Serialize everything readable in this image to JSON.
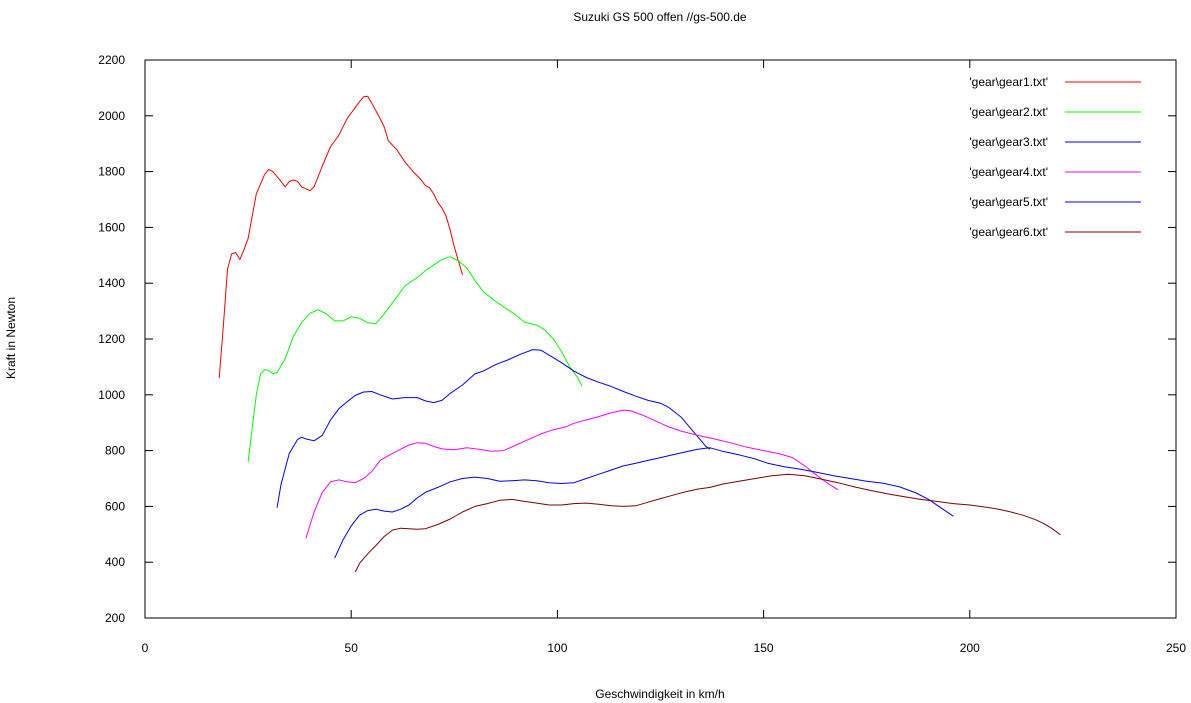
{
  "chart_data": {
    "type": "line",
    "title": "Suzuki GS 500 offen //gs-500.de",
    "xlabel": "Geschwindigkeit in km/h",
    "ylabel": "Kraft in Newton",
    "xlim": [
      0,
      250
    ],
    "ylim": [
      200,
      2200
    ],
    "xticks": [
      0,
      50,
      100,
      150,
      200,
      250
    ],
    "yticks": [
      200,
      400,
      600,
      800,
      1000,
      1200,
      1400,
      1600,
      1800,
      2000,
      2200
    ],
    "grid": false,
    "legend_position": "top-right",
    "series": [
      {
        "name": "'gear\\gear1.txt'",
        "color": "#ff0000",
        "points": [
          [
            18,
            1060
          ],
          [
            19,
            1250
          ],
          [
            20,
            1450
          ],
          [
            21,
            1505
          ],
          [
            22,
            1510
          ],
          [
            23,
            1485
          ],
          [
            24,
            1520
          ],
          [
            25,
            1560
          ],
          [
            27,
            1720
          ],
          [
            29,
            1790
          ],
          [
            30,
            1808
          ],
          [
            31,
            1800
          ],
          [
            33,
            1765
          ],
          [
            34,
            1745
          ],
          [
            35,
            1765
          ],
          [
            36,
            1770
          ],
          [
            37,
            1765
          ],
          [
            38,
            1745
          ],
          [
            40,
            1732
          ],
          [
            41,
            1745
          ],
          [
            43,
            1820
          ],
          [
            45,
            1890
          ],
          [
            47,
            1930
          ],
          [
            49,
            1990
          ],
          [
            51,
            2030
          ],
          [
            52,
            2050
          ],
          [
            53,
            2068
          ],
          [
            54,
            2070
          ],
          [
            55,
            2045
          ],
          [
            57,
            1990
          ],
          [
            58,
            1960
          ],
          [
            59,
            1910
          ],
          [
            61,
            1880
          ],
          [
            63,
            1835
          ],
          [
            65,
            1800
          ],
          [
            67,
            1770
          ],
          [
            68,
            1750
          ],
          [
            69,
            1742
          ],
          [
            70,
            1720
          ],
          [
            71,
            1690
          ],
          [
            72,
            1670
          ],
          [
            73,
            1640
          ],
          [
            74,
            1590
          ],
          [
            75,
            1530
          ],
          [
            76,
            1480
          ],
          [
            77,
            1430
          ]
        ]
      },
      {
        "name": "'gear\\gear2.txt'",
        "color": "#00ff00",
        "points": [
          [
            25,
            760
          ],
          [
            26,
            880
          ],
          [
            27,
            1000
          ],
          [
            28,
            1075
          ],
          [
            29,
            1090
          ],
          [
            30,
            1088
          ],
          [
            31,
            1075
          ],
          [
            32,
            1080
          ],
          [
            34,
            1130
          ],
          [
            36,
            1210
          ],
          [
            38,
            1260
          ],
          [
            40,
            1292
          ],
          [
            42,
            1305
          ],
          [
            44,
            1290
          ],
          [
            46,
            1265
          ],
          [
            48,
            1265
          ],
          [
            50,
            1280
          ],
          [
            52,
            1275
          ],
          [
            54,
            1258
          ],
          [
            56,
            1255
          ],
          [
            58,
            1290
          ],
          [
            61,
            1350
          ],
          [
            63,
            1390
          ],
          [
            66,
            1420
          ],
          [
            68,
            1445
          ],
          [
            70,
            1465
          ],
          [
            72,
            1485
          ],
          [
            74,
            1495
          ],
          [
            76,
            1480
          ],
          [
            78,
            1455
          ],
          [
            80,
            1410
          ],
          [
            82,
            1370
          ],
          [
            85,
            1335
          ],
          [
            88,
            1305
          ],
          [
            90,
            1285
          ],
          [
            92,
            1260
          ],
          [
            95,
            1250
          ],
          [
            97,
            1232
          ],
          [
            99,
            1200
          ],
          [
            101,
            1155
          ],
          [
            103,
            1100
          ],
          [
            105,
            1060
          ],
          [
            106,
            1030
          ]
        ]
      },
      {
        "name": "'gear\\gear3.txt'",
        "color": "#0000ff",
        "points": [
          [
            32,
            595
          ],
          [
            33,
            680
          ],
          [
            35,
            790
          ],
          [
            37,
            840
          ],
          [
            38,
            848
          ],
          [
            39,
            842
          ],
          [
            41,
            835
          ],
          [
            43,
            855
          ],
          [
            45,
            910
          ],
          [
            47,
            950
          ],
          [
            49,
            975
          ],
          [
            51,
            998
          ],
          [
            53,
            1010
          ],
          [
            55,
            1012
          ],
          [
            57,
            1000
          ],
          [
            60,
            985
          ],
          [
            63,
            990
          ],
          [
            66,
            990
          ],
          [
            68,
            978
          ],
          [
            70,
            972
          ],
          [
            72,
            980
          ],
          [
            74,
            1005
          ],
          [
            77,
            1035
          ],
          [
            80,
            1075
          ],
          [
            82,
            1085
          ],
          [
            85,
            1108
          ],
          [
            88,
            1125
          ],
          [
            91,
            1145
          ],
          [
            94,
            1162
          ],
          [
            96,
            1160
          ],
          [
            98,
            1142
          ],
          [
            101,
            1115
          ],
          [
            104,
            1085
          ],
          [
            107,
            1062
          ],
          [
            110,
            1045
          ],
          [
            113,
            1030
          ],
          [
            116,
            1012
          ],
          [
            119,
            995
          ],
          [
            122,
            980
          ],
          [
            125,
            970
          ],
          [
            127,
            955
          ],
          [
            130,
            920
          ],
          [
            132,
            885
          ],
          [
            134,
            850
          ],
          [
            136,
            815
          ],
          [
            137,
            805
          ]
        ]
      },
      {
        "name": "'gear\\gear4.txt'",
        "color": "#ff00ff",
        "points": [
          [
            39,
            485
          ],
          [
            41,
            580
          ],
          [
            43,
            650
          ],
          [
            45,
            688
          ],
          [
            47,
            695
          ],
          [
            49,
            688
          ],
          [
            51,
            685
          ],
          [
            53,
            700
          ],
          [
            55,
            725
          ],
          [
            57,
            765
          ],
          [
            60,
            790
          ],
          [
            62,
            805
          ],
          [
            64,
            820
          ],
          [
            66,
            828
          ],
          [
            68,
            826
          ],
          [
            70,
            815
          ],
          [
            72,
            806
          ],
          [
            75,
            803
          ],
          [
            78,
            810
          ],
          [
            81,
            805
          ],
          [
            84,
            798
          ],
          [
            87,
            800
          ],
          [
            90,
            820
          ],
          [
            93,
            840
          ],
          [
            96,
            860
          ],
          [
            99,
            875
          ],
          [
            102,
            885
          ],
          [
            104,
            898
          ],
          [
            107,
            910
          ],
          [
            110,
            922
          ],
          [
            113,
            935
          ],
          [
            116,
            945
          ],
          [
            118,
            942
          ],
          [
            121,
            925
          ],
          [
            124,
            905
          ],
          [
            127,
            885
          ],
          [
            130,
            870
          ],
          [
            134,
            855
          ],
          [
            138,
            842
          ],
          [
            142,
            828
          ],
          [
            146,
            812
          ],
          [
            150,
            800
          ],
          [
            154,
            788
          ],
          [
            157,
            775
          ],
          [
            160,
            745
          ],
          [
            163,
            710
          ],
          [
            166,
            678
          ],
          [
            168,
            660
          ]
        ]
      },
      {
        "name": "'gear\\gear5.txt'",
        "color": "#0000ff",
        "points": [
          [
            46,
            415
          ],
          [
            48,
            480
          ],
          [
            50,
            530
          ],
          [
            52,
            568
          ],
          [
            54,
            585
          ],
          [
            56,
            590
          ],
          [
            58,
            583
          ],
          [
            60,
            580
          ],
          [
            62,
            590
          ],
          [
            64,
            605
          ],
          [
            66,
            630
          ],
          [
            68,
            650
          ],
          [
            71,
            668
          ],
          [
            74,
            688
          ],
          [
            77,
            700
          ],
          [
            80,
            705
          ],
          [
            83,
            700
          ],
          [
            86,
            690
          ],
          [
            89,
            692
          ],
          [
            92,
            695
          ],
          [
            95,
            692
          ],
          [
            98,
            685
          ],
          [
            101,
            682
          ],
          [
            104,
            685
          ],
          [
            107,
            700
          ],
          [
            110,
            715
          ],
          [
            113,
            730
          ],
          [
            116,
            745
          ],
          [
            119,
            755
          ],
          [
            122,
            765
          ],
          [
            125,
            775
          ],
          [
            128,
            785
          ],
          [
            131,
            795
          ],
          [
            134,
            805
          ],
          [
            137,
            810
          ],
          [
            140,
            798
          ],
          [
            144,
            785
          ],
          [
            148,
            770
          ],
          [
            151,
            755
          ],
          [
            155,
            742
          ],
          [
            159,
            733
          ],
          [
            163,
            722
          ],
          [
            167,
            710
          ],
          [
            171,
            700
          ],
          [
            175,
            690
          ],
          [
            179,
            683
          ],
          [
            183,
            670
          ],
          [
            187,
            648
          ],
          [
            190,
            625
          ],
          [
            193,
            595
          ],
          [
            196,
            565
          ]
        ]
      },
      {
        "name": "'gear\\gear6.txt'",
        "color": "#800000",
        "points": [
          [
            51,
            365
          ],
          [
            52,
            395
          ],
          [
            54,
            430
          ],
          [
            56,
            460
          ],
          [
            58,
            492
          ],
          [
            60,
            515
          ],
          [
            62,
            522
          ],
          [
            64,
            520
          ],
          [
            66,
            518
          ],
          [
            68,
            520
          ],
          [
            71,
            535
          ],
          [
            74,
            555
          ],
          [
            77,
            580
          ],
          [
            80,
            600
          ],
          [
            83,
            610
          ],
          [
            86,
            622
          ],
          [
            89,
            625
          ],
          [
            92,
            618
          ],
          [
            95,
            612
          ],
          [
            98,
            605
          ],
          [
            101,
            605
          ],
          [
            104,
            610
          ],
          [
            107,
            612
          ],
          [
            110,
            608
          ],
          [
            113,
            602
          ],
          [
            116,
            600
          ],
          [
            119,
            602
          ],
          [
            122,
            615
          ],
          [
            125,
            628
          ],
          [
            128,
            640
          ],
          [
            131,
            652
          ],
          [
            134,
            662
          ],
          [
            137,
            668
          ],
          [
            140,
            680
          ],
          [
            144,
            690
          ],
          [
            148,
            700
          ],
          [
            152,
            710
          ],
          [
            156,
            715
          ],
          [
            160,
            710
          ],
          [
            164,
            698
          ],
          [
            168,
            685
          ],
          [
            172,
            670
          ],
          [
            176,
            657
          ],
          [
            180,
            645
          ],
          [
            184,
            635
          ],
          [
            188,
            625
          ],
          [
            192,
            618
          ],
          [
            196,
            610
          ],
          [
            200,
            605
          ],
          [
            204,
            597
          ],
          [
            207,
            590
          ],
          [
            210,
            580
          ],
          [
            213,
            568
          ],
          [
            216,
            552
          ],
          [
            218,
            538
          ],
          [
            220,
            520
          ],
          [
            222,
            498
          ]
        ]
      }
    ]
  }
}
